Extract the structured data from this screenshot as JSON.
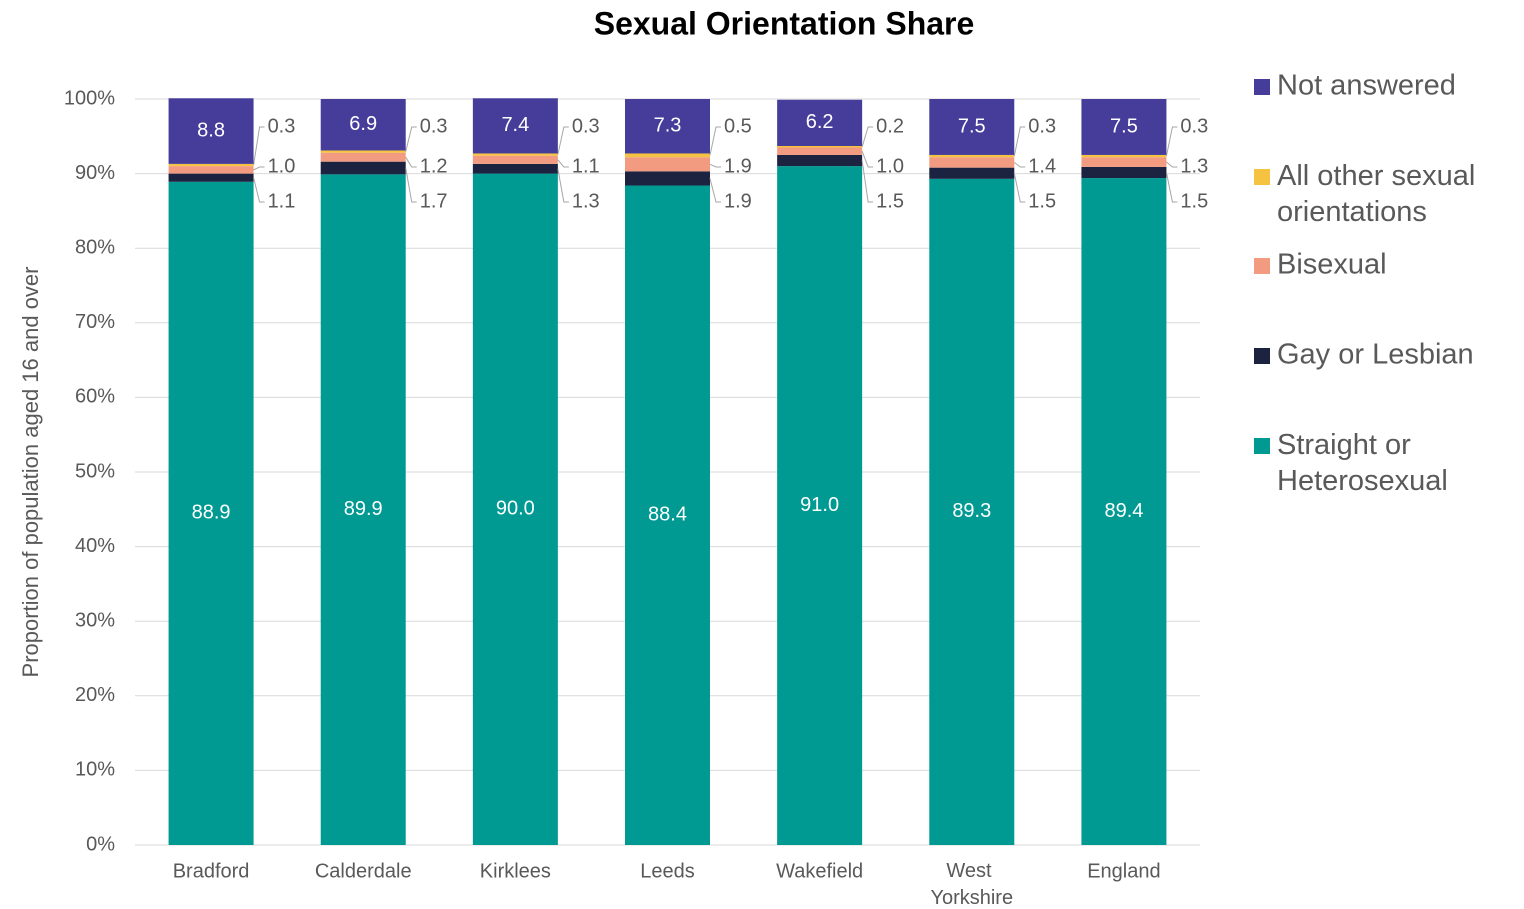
{
  "chart_data": {
    "type": "stacked_bar",
    "title": "Sexual Orientation Share",
    "y_label": "Proportion of population aged 16 and over",
    "categories": [
      "Bradford",
      "Calderdale",
      "Kirklees",
      "Leeds",
      "Wakefield",
      "West Yorkshire",
      "England"
    ],
    "series": [
      {
        "name": "Straight or Heterosexual",
        "color": "#009a93",
        "values": [
          88.9,
          89.9,
          90,
          88.4,
          91,
          89.3,
          89.4
        ],
        "value_labels": [
          "88.9",
          "89.9",
          "90.0",
          "88.4",
          "91.0",
          "89.3",
          "89.4"
        ]
      },
      {
        "name": "Gay or Lesbian",
        "color": "#1b2340",
        "values": [
          1.1,
          1.7,
          1.3,
          1.9,
          1.5,
          1.5,
          1.5
        ],
        "value_labels": [
          "1.1",
          "1.7",
          "1.3",
          "1.9",
          "1.5",
          "1.5",
          "1.5"
        ]
      },
      {
        "name": "Bisexual",
        "color": "#f29b80",
        "values": [
          1,
          1.2,
          1.1,
          1.9,
          1,
          1.4,
          1.3
        ],
        "value_labels": [
          "1.0",
          "1.2",
          "1.1",
          "1.9",
          "1.0",
          "1.4",
          "1.3"
        ]
      },
      {
        "name": "All other sexual orientations",
        "color": "#f5c242",
        "values": [
          0.3,
          0.3,
          0.3,
          0.5,
          0.2,
          0.3,
          0.3
        ],
        "value_labels": [
          "0.3",
          "0.3",
          "0.3",
          "0.5",
          "0.2",
          "0.3",
          "0.3"
        ]
      },
      {
        "name": "Not answered",
        "color": "#463d9a",
        "values": [
          8.8,
          6.9,
          7.4,
          7.3,
          6.2,
          7.5,
          7.5
        ],
        "value_labels": [
          "8.8",
          "6.9",
          "7.4",
          "7.3",
          "6.2",
          "7.5",
          "7.5"
        ]
      }
    ],
    "ylim": [
      0,
      100
    ],
    "yticks": [
      {
        "value": 0,
        "label": "0%"
      },
      {
        "value": 10,
        "label": "10%"
      },
      {
        "value": 20,
        "label": "20%"
      },
      {
        "value": 30,
        "label": "30%"
      },
      {
        "value": 40,
        "label": "40%"
      },
      {
        "value": 50,
        "label": "50%"
      },
      {
        "value": 60,
        "label": "60%"
      },
      {
        "value": 70,
        "label": "70%"
      },
      {
        "value": 80,
        "label": "80%"
      },
      {
        "value": 90,
        "label": "90%"
      },
      {
        "value": 100,
        "label": "100%"
      }
    ],
    "grid": true,
    "legend": "right"
  }
}
